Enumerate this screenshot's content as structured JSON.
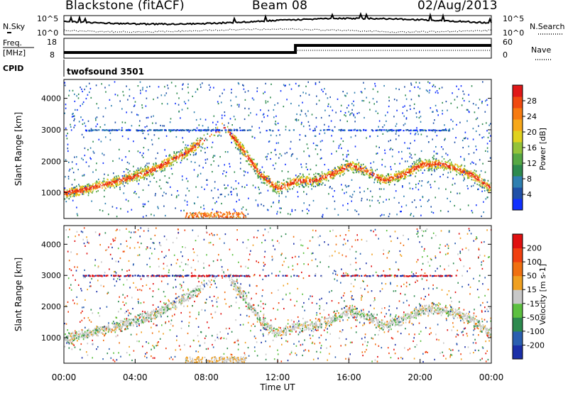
{
  "header": {
    "site": "Blackstone (fitACF)",
    "beam": "Beam 08",
    "date": "02/Aug/2013"
  },
  "summary_panels": {
    "noise": {
      "left_label": "N.Sky",
      "right_label": "N.Search",
      "left_ticks": [
        "10^5",
        "10^0"
      ],
      "right_ticks": [
        "10^5",
        "10^0"
      ]
    },
    "freq": {
      "left_label_lines": [
        "Freq.",
        "[MHz]"
      ],
      "right_label": "Nave",
      "left_ticks": [
        "18",
        "8"
      ],
      "right_ticks": [
        "60",
        "0"
      ],
      "step_time_h": 13.0
    },
    "cpid": {
      "label": "CPID",
      "program": "twofsound 3501"
    }
  },
  "chart_data": [
    {
      "type": "heatmap",
      "title": "",
      "xlabel": "",
      "ylabel": "Slant Range [km]",
      "xlim": [
        0,
        24
      ],
      "ylim": [
        180,
        4600
      ],
      "yticks": [
        1000,
        2000,
        3000,
        4000
      ],
      "colorbar": {
        "label": "Power [dB]",
        "ticks": [
          "4",
          "8",
          "12",
          "16",
          "20",
          "24",
          "28"
        ],
        "colors": [
          "#1030ff",
          "#2050a8",
          "#2f7fb0",
          "#2d8a4e",
          "#56a844",
          "#94c33a",
          "#e0d21f",
          "#f7a81a",
          "#f77b10",
          "#f04a10",
          "#e01818"
        ]
      },
      "range_trace_hours": [
        0,
        1,
        2,
        3,
        4,
        5,
        6,
        7,
        8,
        9,
        10,
        11,
        12,
        13,
        14,
        15,
        16,
        17,
        18,
        19,
        20,
        21,
        22,
        23,
        24
      ],
      "range_trace_km": [
        1000,
        1100,
        1250,
        1400,
        1550,
        1750,
        2050,
        2350,
        2800,
        3150,
        2400,
        1600,
        1150,
        1400,
        1400,
        1600,
        1900,
        1700,
        1400,
        1600,
        1900,
        1950,
        1800,
        1550,
        1150
      ]
    },
    {
      "type": "heatmap",
      "title": "",
      "xlabel": "Time UT",
      "ylabel": "Slant Range [km]",
      "xlim": [
        0,
        24
      ],
      "ylim": [
        180,
        4600
      ],
      "xticks": [
        "00:00",
        "04:00",
        "08:00",
        "12:00",
        "16:00",
        "20:00",
        "00:00"
      ],
      "yticks": [
        1000,
        2000,
        3000,
        4000
      ],
      "colorbar": {
        "label": "Velocity [m s-1]",
        "ticks": [
          "200",
          "100",
          "50",
          "15",
          "-15",
          "-50",
          "-100",
          "-200"
        ],
        "colors": [
          "#1a2fa8",
          "#2a5fb0",
          "#2d8a4e",
          "#5cc040",
          "#c8c8c8",
          "#f0a020",
          "#f07010",
          "#f04010",
          "#e01010"
        ]
      },
      "range_trace_hours": [
        0,
        1,
        2,
        3,
        4,
        5,
        6,
        7,
        8,
        9,
        10,
        11,
        12,
        13,
        14,
        15,
        16,
        17,
        18,
        19,
        20,
        21,
        22,
        23,
        24
      ],
      "range_trace_km": [
        1000,
        1100,
        1250,
        1400,
        1550,
        1750,
        2050,
        2350,
        2800,
        3150,
        2400,
        1600,
        1150,
        1400,
        1400,
        1600,
        1900,
        1700,
        1400,
        1600,
        1900,
        1950,
        1800,
        1550,
        1150
      ]
    }
  ]
}
